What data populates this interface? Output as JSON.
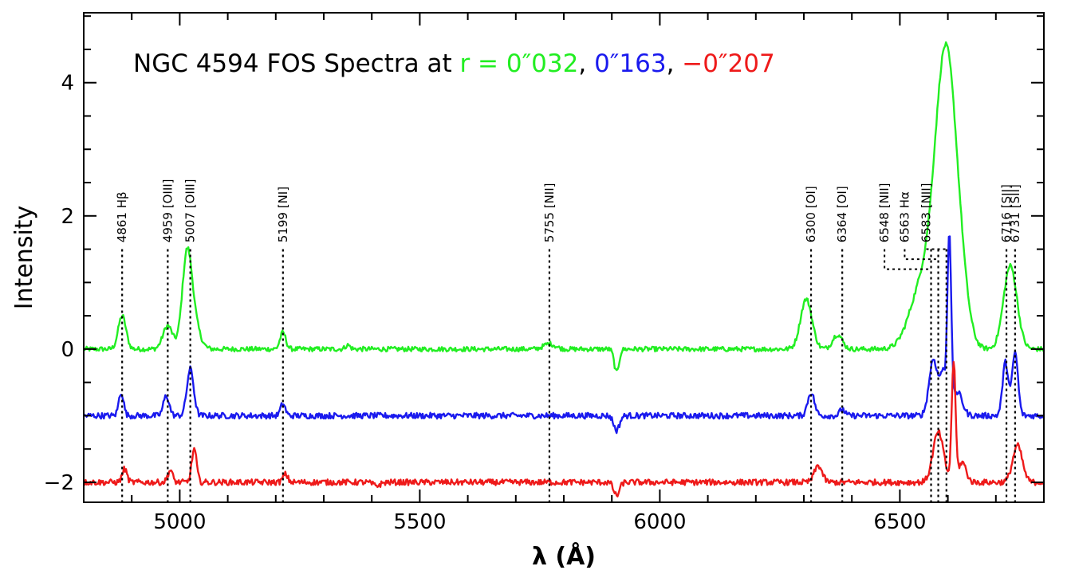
{
  "chart_data": {
    "type": "line",
    "title": {
      "prefix": "NGC 4594 FOS Spectra at ",
      "parts": [
        {
          "text": "r = 0″032",
          "color": "#22ee22"
        },
        {
          "text": ", ",
          "color": "#000000"
        },
        {
          "text": "0″163",
          "color": "#1a1aee"
        },
        {
          "text": ", ",
          "color": "#000000"
        },
        {
          "text": "−0″207",
          "color": "#ee1a1a"
        }
      ]
    },
    "xlabel": "λ (Å)",
    "ylabel": "Intensity",
    "xlim": [
      4800,
      6800
    ],
    "ylim": [
      -2.3,
      5.05
    ],
    "x_ticks": [
      5000,
      5500,
      6000,
      6500
    ],
    "x_tick_labels": [
      "5000",
      "5500",
      "6000",
      "6500"
    ],
    "y_ticks": [
      -2,
      0,
      2,
      4
    ],
    "y_tick_labels": [
      "−2",
      "0",
      "2",
      "4"
    ],
    "grid": false,
    "series": [
      {
        "color": "#22ee22",
        "offset": 0,
        "noise": 0.018,
        "peaks": [
          [
            4880,
            0.5,
            8
          ],
          [
            4975,
            0.35,
            10
          ],
          [
            5015,
            1.35,
            10
          ],
          [
            5030,
            0.35,
            12
          ],
          [
            5215,
            0.25,
            6
          ],
          [
            5350,
            0.06,
            5
          ],
          [
            5770,
            0.08,
            12
          ],
          [
            5910,
            -0.35,
            5
          ],
          [
            6305,
            0.75,
            12
          ],
          [
            6370,
            0.22,
            10
          ],
          [
            6595,
            4.3,
            22
          ],
          [
            6545,
            0.9,
            25
          ],
          [
            6625,
            0.6,
            18
          ],
          [
            6730,
            1.25,
            14
          ]
        ]
      },
      {
        "color": "#1a1aee",
        "offset": -1,
        "noise": 0.022,
        "peaks": [
          [
            4878,
            0.35,
            5
          ],
          [
            4972,
            0.3,
            6
          ],
          [
            5022,
            0.7,
            7
          ],
          [
            5215,
            0.18,
            5
          ],
          [
            5910,
            -0.22,
            6
          ],
          [
            6315,
            0.35,
            7
          ],
          [
            6380,
            0.1,
            5
          ],
          [
            6570,
            0.85,
            9
          ],
          [
            6590,
            0.6,
            6
          ],
          [
            6603,
            2.65,
            4
          ],
          [
            6620,
            0.35,
            10
          ],
          [
            6720,
            0.8,
            6
          ],
          [
            6740,
            0.95,
            6
          ]
        ]
      },
      {
        "color": "#ee1a1a",
        "offset": -2,
        "noise": 0.022,
        "peaks": [
          [
            4885,
            0.2,
            5
          ],
          [
            4980,
            0.18,
            5
          ],
          [
            5030,
            0.5,
            5
          ],
          [
            5220,
            0.12,
            5
          ],
          [
            5410,
            -0.05,
            8
          ],
          [
            5910,
            -0.2,
            6
          ],
          [
            6330,
            0.25,
            8
          ],
          [
            6580,
            0.75,
            11
          ],
          [
            6612,
            1.8,
            4
          ],
          [
            6630,
            0.3,
            8
          ],
          [
            6745,
            0.55,
            10
          ]
        ]
      }
    ],
    "annotations": [
      {
        "label": "4861 Hβ",
        "x": 4880,
        "top": 1.5,
        "bottom": -2.5
      },
      {
        "label": "4959 [OIII]",
        "x": 4975,
        "top": 1.5,
        "bottom": -2.5
      },
      {
        "label": "5007 [OIII]",
        "x": 5022,
        "top": 1.5,
        "bottom": -2.5
      },
      {
        "label": "5199 [NI]",
        "x": 5215,
        "top": 1.5,
        "bottom": -2.5
      },
      {
        "label": "5755 [NII]",
        "x": 5770,
        "top": 1.5,
        "bottom": -2.5
      },
      {
        "label": "6300 [OI]",
        "x": 6315,
        "top": 1.5,
        "bottom": -2.5
      },
      {
        "label": "6364 [OI]",
        "x": 6380,
        "top": 1.5,
        "bottom": -2.5
      },
      {
        "label": "6548 [NII]",
        "x": 6565,
        "top": 1.5,
        "bottom": -2.5,
        "leader": 6468,
        "leader_y": 1.2
      },
      {
        "label": "6563 Hα",
        "x": 6580,
        "top": 1.5,
        "bottom": -2.5,
        "leader": 6510,
        "leader_y": 1.35
      },
      {
        "label": "6583 [NII]",
        "x": 6597,
        "top": 1.5,
        "bottom": -2.5,
        "leader": 6555,
        "leader_y": 1.5
      },
      {
        "label": "6716 [SII]",
        "x": 6722,
        "top": 1.5,
        "bottom": -2.5
      },
      {
        "label": "6731 [SII]",
        "x": 6740,
        "top": 1.5,
        "bottom": -2.5
      }
    ]
  }
}
